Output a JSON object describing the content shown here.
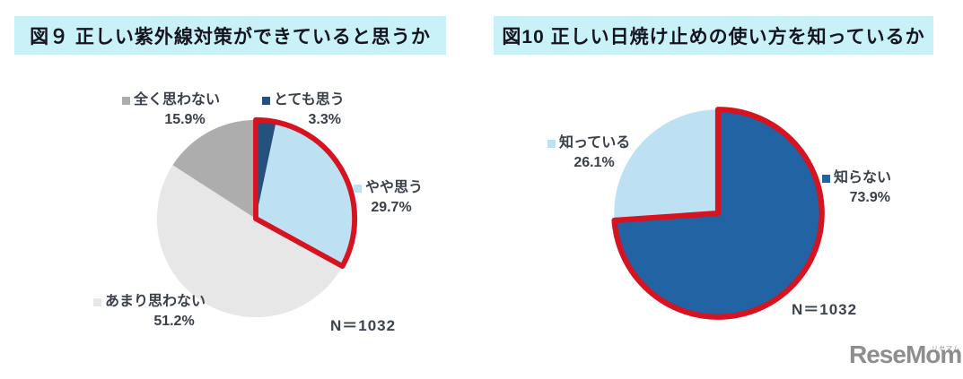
{
  "colors": {
    "title_bar_bg": "#c9f1f8",
    "title_text": "#15151f",
    "label_text": "#3a4049",
    "highlight_red": "#d6131e",
    "logo_gray": "#8e8e8e"
  },
  "chart_data": [
    {
      "type": "pie",
      "title": "図９ 正しい紫外線対策ができていると思うか",
      "n_label": "N＝1032",
      "start_angle": "top",
      "direction": "clockwise",
      "legend_position": "callouts around pie",
      "slices": [
        {
          "label": "とても思う",
          "value": 3.3,
          "pct": "3.3%",
          "color": "#24517e"
        },
        {
          "label": "やや思う",
          "value": 29.7,
          "pct": "29.7%",
          "color": "#bde1f3"
        },
        {
          "label": "あまり思わない",
          "value": 51.2,
          "pct": "51.2%",
          "color": "#e7e7e7"
        },
        {
          "label": "全く思わない",
          "value": 15.9,
          "pct": "15.9%",
          "color": "#adadad"
        }
      ],
      "highlight": {
        "start_pct": 0,
        "end_pct": 33.0,
        "color": "#d6131e",
        "note": "red outline around とても思う and やや思う slices"
      }
    },
    {
      "type": "pie",
      "title": "図10  正しい日焼け止めの使い方を知っているか",
      "n_label": "N＝1032",
      "start_angle": "top",
      "direction": "clockwise",
      "legend_position": "callouts around pie",
      "slices": [
        {
          "label": "知らない",
          "value": 73.9,
          "pct": "73.9%",
          "color": "#2263a3"
        },
        {
          "label": "知っている",
          "value": 26.1,
          "pct": "26.1%",
          "color": "#bde1f3"
        }
      ],
      "highlight": {
        "start_pct": 0,
        "end_pct": 73.9,
        "color": "#d6131e",
        "note": "red outline around 知らない slice"
      }
    }
  ],
  "branding": {
    "logo_text": "ReseMom.",
    "logo_ruby": "リセマム"
  }
}
